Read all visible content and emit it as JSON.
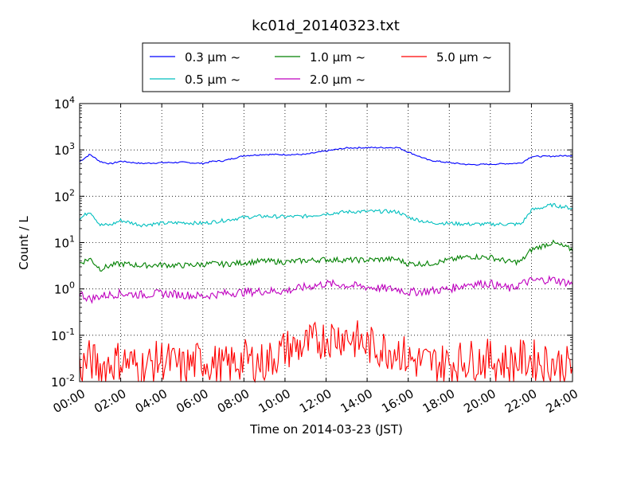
{
  "chart_data": {
    "type": "line",
    "title": "kc01d_20140323.txt",
    "xlabel": "Time on 2014-03-23 (JST)",
    "ylabel": "Count / L",
    "yscale": "log",
    "ylim": [
      0.01,
      10000
    ],
    "xlim": [
      "00:00",
      "24:00"
    ],
    "grid": true,
    "legend_position": "top",
    "x_tick_labels": [
      "00:00",
      "02:00",
      "04:00",
      "06:00",
      "08:00",
      "10:00",
      "12:00",
      "14:00",
      "16:00",
      "18:00",
      "20:00",
      "22:00",
      "24:00"
    ],
    "y_tick_labels": [
      {
        "base": "10",
        "exp": "-2",
        "value": 0.01
      },
      {
        "base": "10",
        "exp": "-1",
        "value": 0.1
      },
      {
        "base": "10",
        "exp": "0",
        "value": 1
      },
      {
        "base": "10",
        "exp": "1",
        "value": 10
      },
      {
        "base": "10",
        "exp": "2",
        "value": 100
      },
      {
        "base": "10",
        "exp": "3",
        "value": 1000
      },
      {
        "base": "10",
        "exp": "4",
        "value": 10000
      }
    ],
    "x_hours": [
      0,
      0.5,
      1,
      1.5,
      2,
      3,
      4,
      5,
      6,
      6.5,
      7,
      8,
      9,
      10,
      11,
      12,
      13,
      14,
      15,
      15.5,
      16,
      17,
      18,
      19,
      20,
      21,
      21.5,
      22,
      23,
      24
    ],
    "series": [
      {
        "name": "0.3 μm ~",
        "color": "#0000ff",
        "values": [
          560,
          800,
          560,
          500,
          570,
          510,
          530,
          540,
          510,
          570,
          580,
          750,
          800,
          790,
          800,
          950,
          1100,
          1120,
          1120,
          1130,
          900,
          600,
          530,
          480,
          490,
          510,
          520,
          720,
          730,
          760
        ]
      },
      {
        "name": "0.5 μm ~",
        "color": "#00bfbf",
        "values": [
          32,
          48,
          24,
          24,
          30,
          24,
          26,
          27,
          26,
          28,
          30,
          35,
          37,
          36,
          37,
          42,
          46,
          47,
          47,
          46,
          35,
          27,
          26,
          25,
          25,
          25,
          25,
          50,
          65,
          55
        ]
      },
      {
        "name": "1.0 μm ~",
        "color": "#008000",
        "values": [
          3.6,
          4.5,
          2.7,
          3.2,
          3.5,
          3.2,
          3.3,
          3.2,
          3.4,
          3.5,
          3.4,
          3.7,
          4.0,
          3.8,
          4.1,
          4.3,
          4.2,
          4.2,
          4.4,
          4.3,
          3.5,
          3.5,
          4.2,
          5.0,
          4.8,
          3.8,
          3.9,
          7.0,
          10,
          7.0
        ]
      },
      {
        "name": "2.0 μm ~",
        "color": "#bf00bf",
        "values": [
          0.8,
          0.6,
          0.7,
          0.75,
          0.8,
          0.75,
          0.8,
          0.75,
          0.7,
          0.75,
          0.8,
          0.85,
          0.9,
          0.9,
          1.1,
          1.3,
          1.2,
          1.1,
          1.0,
          1.0,
          0.85,
          0.9,
          1.0,
          1.3,
          1.3,
          1.0,
          1.3,
          1.5,
          1.6,
          1.3
        ]
      },
      {
        "name": "5.0 μm ~",
        "color": "#ff0000",
        "values": [
          0.02,
          0.03,
          0.02,
          0.025,
          0.03,
          0.02,
          0.03,
          0.02,
          0.03,
          0.025,
          0.02,
          0.03,
          0.025,
          0.05,
          0.06,
          0.09,
          0.1,
          0.06,
          0.05,
          0.05,
          0.03,
          0.025,
          0.025,
          0.03,
          0.03,
          0.025,
          0.03,
          0.03,
          0.025,
          0.02
        ]
      }
    ]
  }
}
